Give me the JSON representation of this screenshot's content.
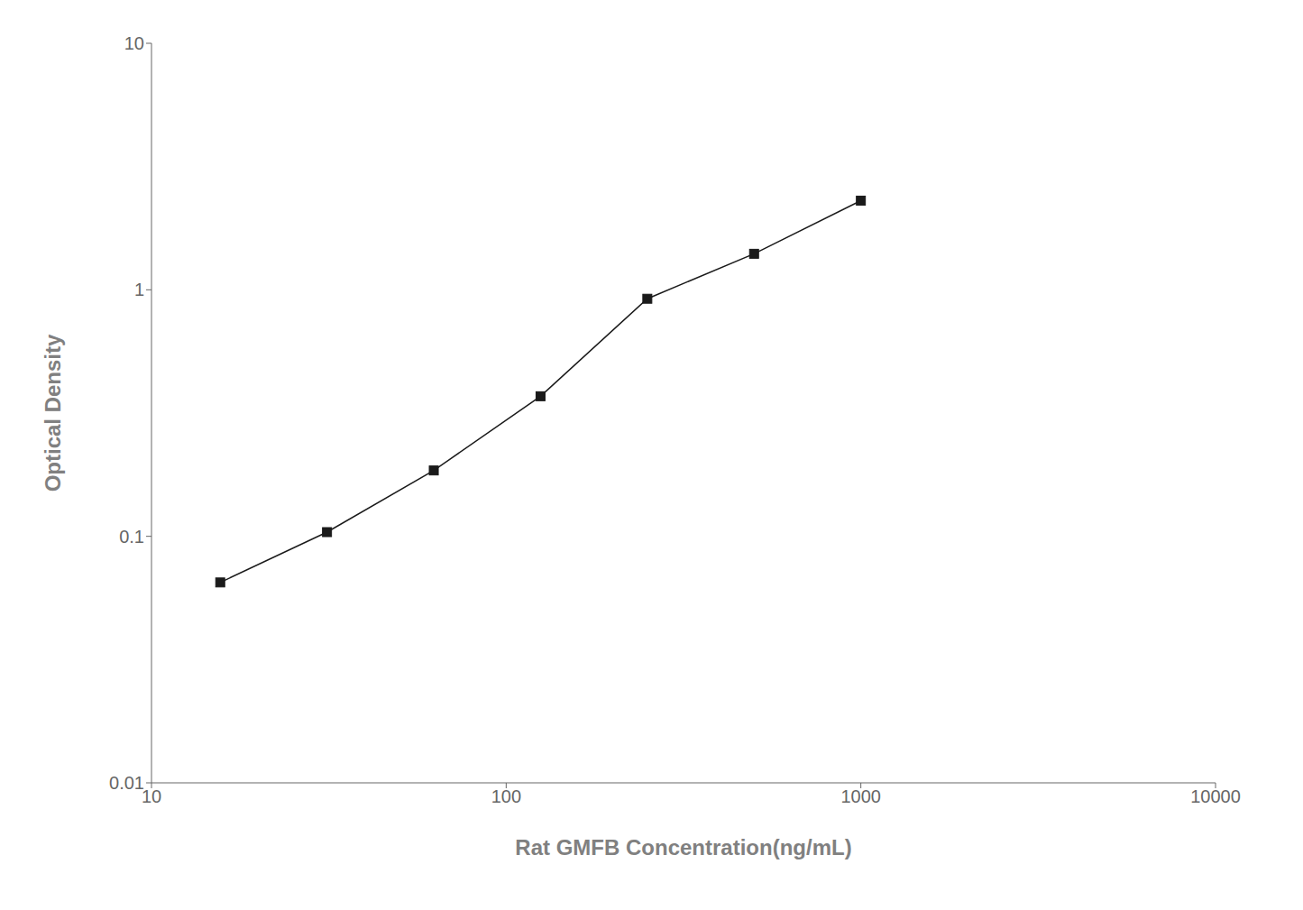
{
  "chart_data": {
    "type": "line",
    "x": [
      15.625,
      31.25,
      62.5,
      125,
      250,
      500,
      1000
    ],
    "values": [
      0.065,
      0.104,
      0.185,
      0.37,
      0.92,
      1.4,
      2.3
    ],
    "xlabel": "Rat GMFB Concentration(ng/mL)",
    "ylabel": "Optical Density",
    "xlim": [
      10,
      10000
    ],
    "ylim": [
      0.01,
      10
    ],
    "xticks": [
      10,
      100,
      1000,
      10000
    ],
    "yticks": [
      0.01,
      0.1,
      1,
      10
    ],
    "log": true,
    "grid": false,
    "color": "#1a1a1a",
    "marker": "square"
  }
}
